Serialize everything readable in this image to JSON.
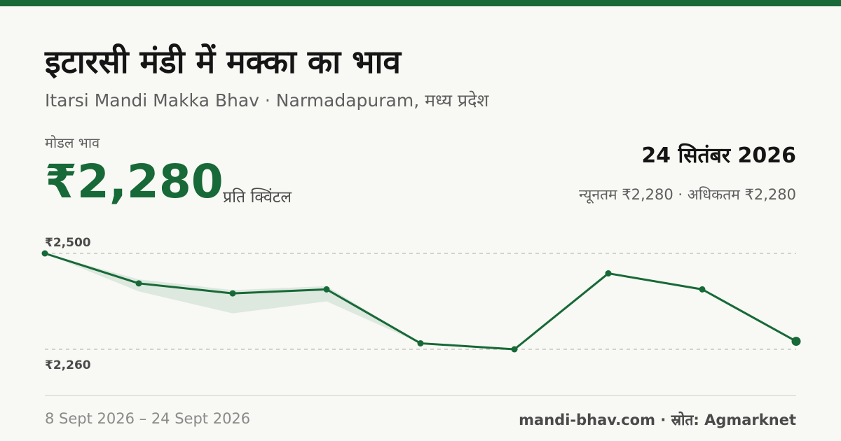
{
  "header": {
    "title": "इटारसी मंडी में मक्का का भाव",
    "subtitle": "Itarsi Mandi Makka Bhav · Narmadapuram, मध्य प्रदेश"
  },
  "price": {
    "label": "मोडल भाव",
    "value": "₹2,280",
    "unit": "प्रति क्विंटल"
  },
  "summary": {
    "date": "24 सितंबर 2026",
    "min_max": "न्यूनतम ₹2,280 · अधिकतम ₹2,280"
  },
  "chart_data": {
    "type": "line",
    "y_tick_labels": [
      "₹2,500",
      "₹2,260"
    ],
    "y_ticks": [
      2500,
      2260
    ],
    "ylim": [
      2260,
      2500
    ],
    "x_range_label": "8 Sept 2026 – 24 Sept 2026",
    "series": [
      {
        "values": [
          2500,
          2425,
          2400,
          2410,
          2275,
          2260,
          2450,
          2410,
          2280
        ]
      }
    ],
    "band_min": [
      2500,
      2405,
      2350,
      2380,
      2275,
      2260,
      2450,
      2410,
      2280
    ],
    "band_max": [
      2500,
      2435,
      2408,
      2418,
      2275,
      2260,
      2450,
      2410,
      2280
    ],
    "grid": true,
    "line_color": "#176937",
    "band_color": "#dde8df"
  },
  "footer": {
    "source": "mandi-bhav.com · स्रोत: Agmarknet"
  }
}
